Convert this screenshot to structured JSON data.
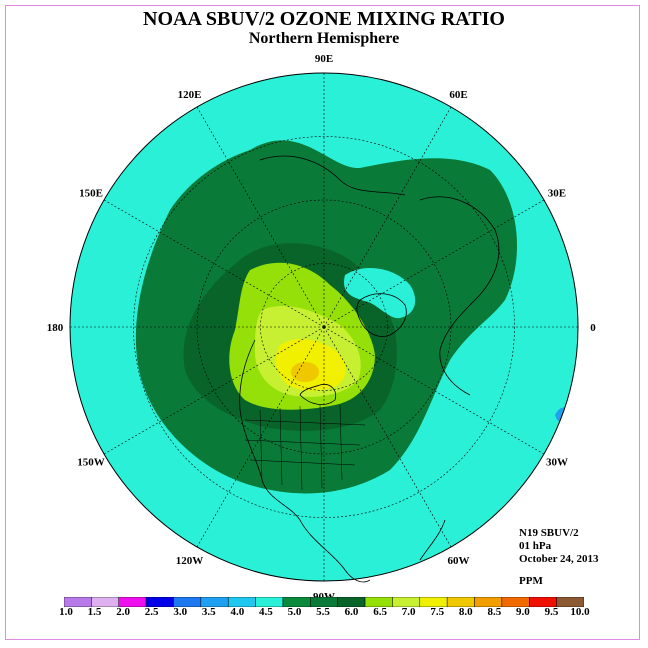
{
  "title": "NOAA SBUV/2 OZONE MIXING RATIO",
  "subtitle": "Northern Hemisphere",
  "info": {
    "instrument": "N19 SBUV/2",
    "level": "01 hPa",
    "date": "October 24, 2013",
    "units": "PPM"
  },
  "longitude_labels": [
    "90E",
    "60E",
    "30E",
    "0",
    "30W",
    "60W",
    "90W",
    "120W",
    "150W",
    "180",
    "150E",
    "120E"
  ],
  "colorbar": {
    "ticks": [
      "1.0",
      "1.5",
      "2.0",
      "2.5",
      "3.0",
      "3.5",
      "4.0",
      "4.5",
      "5.0",
      "5.5",
      "6.0",
      "6.5",
      "7.0",
      "7.5",
      "8.0",
      "8.5",
      "9.0",
      "9.5",
      "10.0"
    ],
    "colors": [
      "#b87ae8",
      "#deb0f0",
      "#ee10ee",
      "#0000e8",
      "#1e78f0",
      "#20a0f0",
      "#20c8f0",
      "#2af0d8",
      "#0a8a3a",
      "#0a7a38",
      "#086428",
      "#96e00a",
      "#c8f032",
      "#f0f000",
      "#f0c800",
      "#f09e00",
      "#f06a00",
      "#f01000",
      "#8c5a32"
    ]
  },
  "map_colors": {
    "c_4_5_5_0": "#2af0d8",
    "c_5_0_5_5": "#0a7a38",
    "c_5_5_6_0": "#086428",
    "c_6_0_6_5": "#96e00a",
    "c_6_5_7_0": "#c8f032",
    "c_7_0_7_5": "#f0f000",
    "c_7_5_8_0": "#f0c800"
  }
}
